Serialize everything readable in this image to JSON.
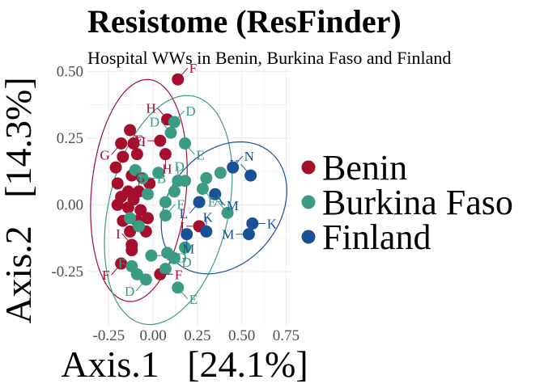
{
  "chart_data": {
    "type": "scatter",
    "title": "Resistome (ResFinder)",
    "subtitle": "Hospital WWs in Benin, Burkina Faso and Finland",
    "xlabel": "Axis.1   [24.1%]",
    "ylabel": "Axis.2   [14.3%]",
    "xlim": [
      -0.37,
      0.78
    ],
    "ylim": [
      -0.45,
      0.51
    ],
    "xticks": [
      "-0.25",
      "0.00",
      "0.25",
      "0.50",
      "0.75"
    ],
    "yticks": [
      "-0.25",
      "0.00",
      "0.25",
      "0.50"
    ],
    "grid": true,
    "legend_position": "right",
    "ellipses": true,
    "series": [
      {
        "name": "Benin",
        "color": "#A50F2D",
        "points": [
          {
            "x": 0.14,
            "y": 0.47,
            "label": "F"
          },
          {
            "x": 0.08,
            "y": 0.32,
            "label": "H"
          },
          {
            "x": -0.13,
            "y": 0.28,
            "label": "I"
          },
          {
            "x": -0.18,
            "y": 0.23,
            "label": "G"
          },
          {
            "x": -0.11,
            "y": 0.23,
            "label": ""
          },
          {
            "x": 0.04,
            "y": 0.24,
            "label": "G"
          },
          {
            "x": -0.09,
            "y": 0.19,
            "label": "F"
          },
          {
            "x": 0.07,
            "y": 0.19,
            "label": "H"
          },
          {
            "x": -0.17,
            "y": 0.18,
            "label": ""
          },
          {
            "x": -0.21,
            "y": 0.14,
            "label": ""
          },
          {
            "x": -0.12,
            "y": 0.11,
            "label": ""
          },
          {
            "x": -0.2,
            "y": 0.08,
            "label": ""
          },
          {
            "x": -0.02,
            "y": 0.08,
            "label": ""
          },
          {
            "x": -0.14,
            "y": 0.05,
            "label": ""
          },
          {
            "x": -0.08,
            "y": 0.05,
            "label": "G"
          },
          {
            "x": -0.18,
            "y": 0.03,
            "label": ""
          },
          {
            "x": -0.11,
            "y": 0.02,
            "label": ""
          },
          {
            "x": -0.2,
            "y": 0.0,
            "label": ""
          },
          {
            "x": -0.14,
            "y": -0.01,
            "label": ""
          },
          {
            "x": -0.07,
            "y": -0.02,
            "label": ""
          },
          {
            "x": -0.03,
            "y": -0.05,
            "label": ""
          },
          {
            "x": -0.17,
            "y": -0.06,
            "label": ""
          },
          {
            "x": -0.09,
            "y": -0.06,
            "label": ""
          },
          {
            "x": -0.13,
            "y": -0.1,
            "label": ""
          },
          {
            "x": -0.04,
            "y": -0.1,
            "label": ""
          },
          {
            "x": -0.12,
            "y": -0.15,
            "label": "I"
          },
          {
            "x": -0.12,
            "y": -0.17,
            "label": ""
          },
          {
            "x": -0.18,
            "y": -0.22,
            "label": "F"
          },
          {
            "x": 0.04,
            "y": -0.26,
            "label": "F"
          },
          {
            "x": 0.26,
            "y": -0.08,
            "label": "I"
          }
        ]
      },
      {
        "name": "Burkina Faso",
        "color": "#3A9C83",
        "points": [
          {
            "x": 0.12,
            "y": 0.31,
            "label": "D"
          },
          {
            "x": 0.1,
            "y": 0.27,
            "label": "D"
          },
          {
            "x": 0.18,
            "y": 0.23,
            "label": "E"
          },
          {
            "x": -0.1,
            "y": 0.13,
            "label": ""
          },
          {
            "x": -0.06,
            "y": 0.1,
            "label": "B"
          },
          {
            "x": 0.03,
            "y": 0.12,
            "label": ""
          },
          {
            "x": 0.14,
            "y": 0.09,
            "label": "D"
          },
          {
            "x": 0.18,
            "y": 0.09,
            "label": ""
          },
          {
            "x": 0.3,
            "y": 0.1,
            "label": ""
          },
          {
            "x": 0.38,
            "y": 0.12,
            "label": ""
          },
          {
            "x": 0.28,
            "y": 0.06,
            "label": "A"
          },
          {
            "x": 0.12,
            "y": 0.05,
            "label": ""
          },
          {
            "x": -0.03,
            "y": 0.04,
            "label": ""
          },
          {
            "x": 0.07,
            "y": 0.01,
            "label": ""
          },
          {
            "x": -0.13,
            "y": -0.05,
            "label": ""
          },
          {
            "x": -0.08,
            "y": -0.08,
            "label": ""
          },
          {
            "x": 0.07,
            "y": -0.04,
            "label": "E"
          },
          {
            "x": 0.42,
            "y": -0.03,
            "label": "E"
          },
          {
            "x": -0.12,
            "y": -0.23,
            "label": ""
          },
          {
            "x": -0.04,
            "y": -0.28,
            "label": "D"
          },
          {
            "x": -0.01,
            "y": -0.19,
            "label": "E"
          },
          {
            "x": 0.08,
            "y": -0.18,
            "label": ""
          },
          {
            "x": 0.12,
            "y": -0.2,
            "label": ""
          },
          {
            "x": 0.18,
            "y": -0.16,
            "label": "D"
          },
          {
            "x": 0.07,
            "y": -0.24,
            "label": "D"
          },
          {
            "x": -0.09,
            "y": -0.26,
            "label": "F"
          },
          {
            "x": 0.14,
            "y": -0.31,
            "label": "E"
          }
        ]
      },
      {
        "name": "Finland",
        "color": "#1A5196",
        "points": [
          {
            "x": 0.45,
            "y": 0.14,
            "label": "N"
          },
          {
            "x": 0.55,
            "y": 0.11,
            "label": "K"
          },
          {
            "x": 0.35,
            "y": 0.04,
            "label": "M"
          },
          {
            "x": 0.26,
            "y": 0.01,
            "label": "L"
          },
          {
            "x": 0.56,
            "y": -0.07,
            "label": "K"
          },
          {
            "x": 0.54,
            "y": -0.11,
            "label": "M"
          },
          {
            "x": 0.3,
            "y": -0.1,
            "label": "K"
          },
          {
            "x": 0.19,
            "y": -0.11,
            "label": "M"
          }
        ]
      }
    ]
  }
}
